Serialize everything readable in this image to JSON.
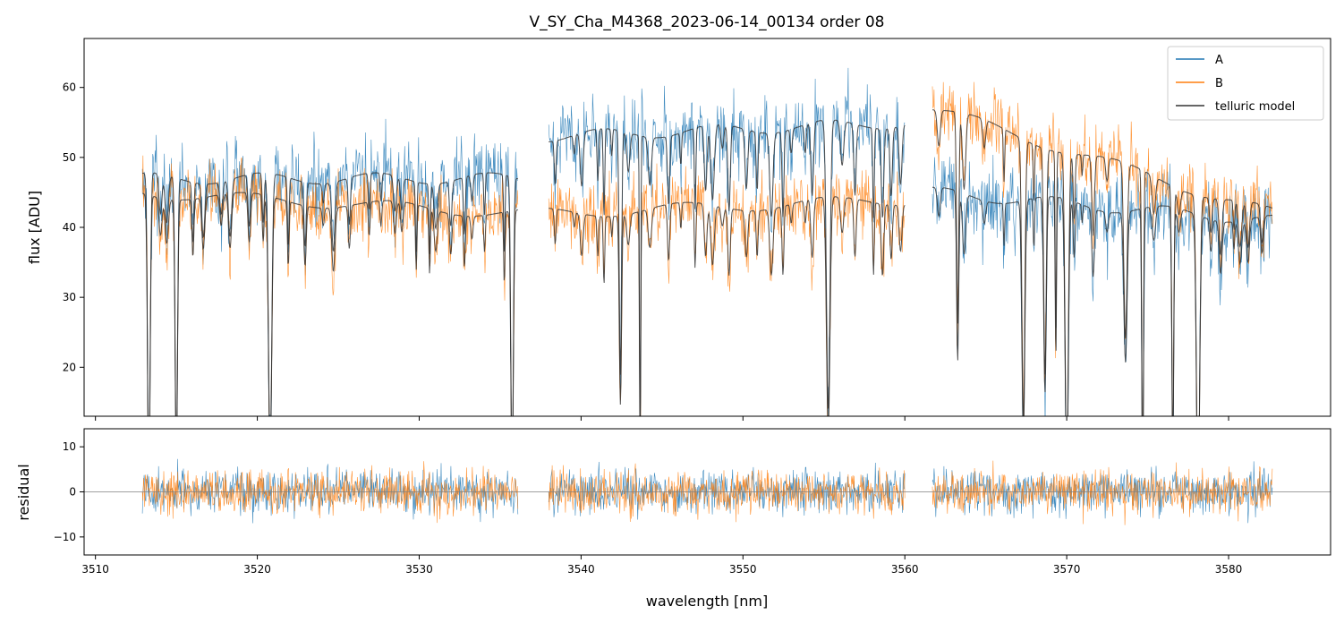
{
  "chart_data": {
    "type": "line",
    "title": "V_SY_Cha_M4368_2023-06-14_00134  order 08",
    "xlabel": "wavelength [nm]",
    "xlim": [
      3509.3,
      3586.3
    ],
    "x_ticks": [
      3510,
      3520,
      3530,
      3540,
      3550,
      3560,
      3570,
      3580
    ],
    "x_tick_labels": [
      "3510",
      "3520",
      "3530",
      "3540",
      "3550",
      "3560",
      "3570",
      "3580"
    ],
    "segments": [
      [
        3512.9,
        3536.1
      ],
      [
        3538.0,
        3560.0
      ],
      [
        3561.7,
        3582.7
      ]
    ],
    "colors": {
      "A": "#1f77b4",
      "B": "#ff7f0e",
      "model": "#333333",
      "zero": "#808080"
    },
    "legend": {
      "position": "top-right",
      "entries": [
        "A",
        "B",
        "telluric model"
      ]
    },
    "upper": {
      "ylabel": "flux [ADU]",
      "ylim": [
        13,
        67
      ],
      "y_ticks": [
        20,
        30,
        40,
        50,
        60
      ],
      "y_tick_labels": [
        "20",
        "30",
        "40",
        "50",
        "60"
      ],
      "series": [
        {
          "name": "A",
          "continuum_by_segment": [
            [
              47,
              47
            ],
            [
              53,
              55
            ],
            [
              45,
              41
            ]
          ],
          "noise": 7
        },
        {
          "name": "B",
          "continuum_by_segment": [
            [
              45,
              42
            ],
            [
              42,
              44
            ],
            [
              57,
              42
            ]
          ],
          "noise": 6
        },
        {
          "name": "telluric model (A)",
          "continuum_by_segment": [
            [
              47,
              47
            ],
            [
              53,
              55
            ],
            [
              45,
              41
            ]
          ]
        },
        {
          "name": "telluric model (B)",
          "continuum_by_segment": [
            [
              45,
              42
            ],
            [
              42,
              44
            ],
            [
              57,
              42
            ]
          ]
        }
      ]
    },
    "lower": {
      "ylabel": "residual",
      "ylim": [
        -14,
        14
      ],
      "y_ticks": [
        -10,
        0,
        10
      ],
      "y_tick_labels": [
        "−10",
        "0",
        "10"
      ],
      "series": [
        {
          "name": "A residual",
          "noise": 5
        },
        {
          "name": "B residual",
          "noise": 5
        }
      ]
    }
  }
}
